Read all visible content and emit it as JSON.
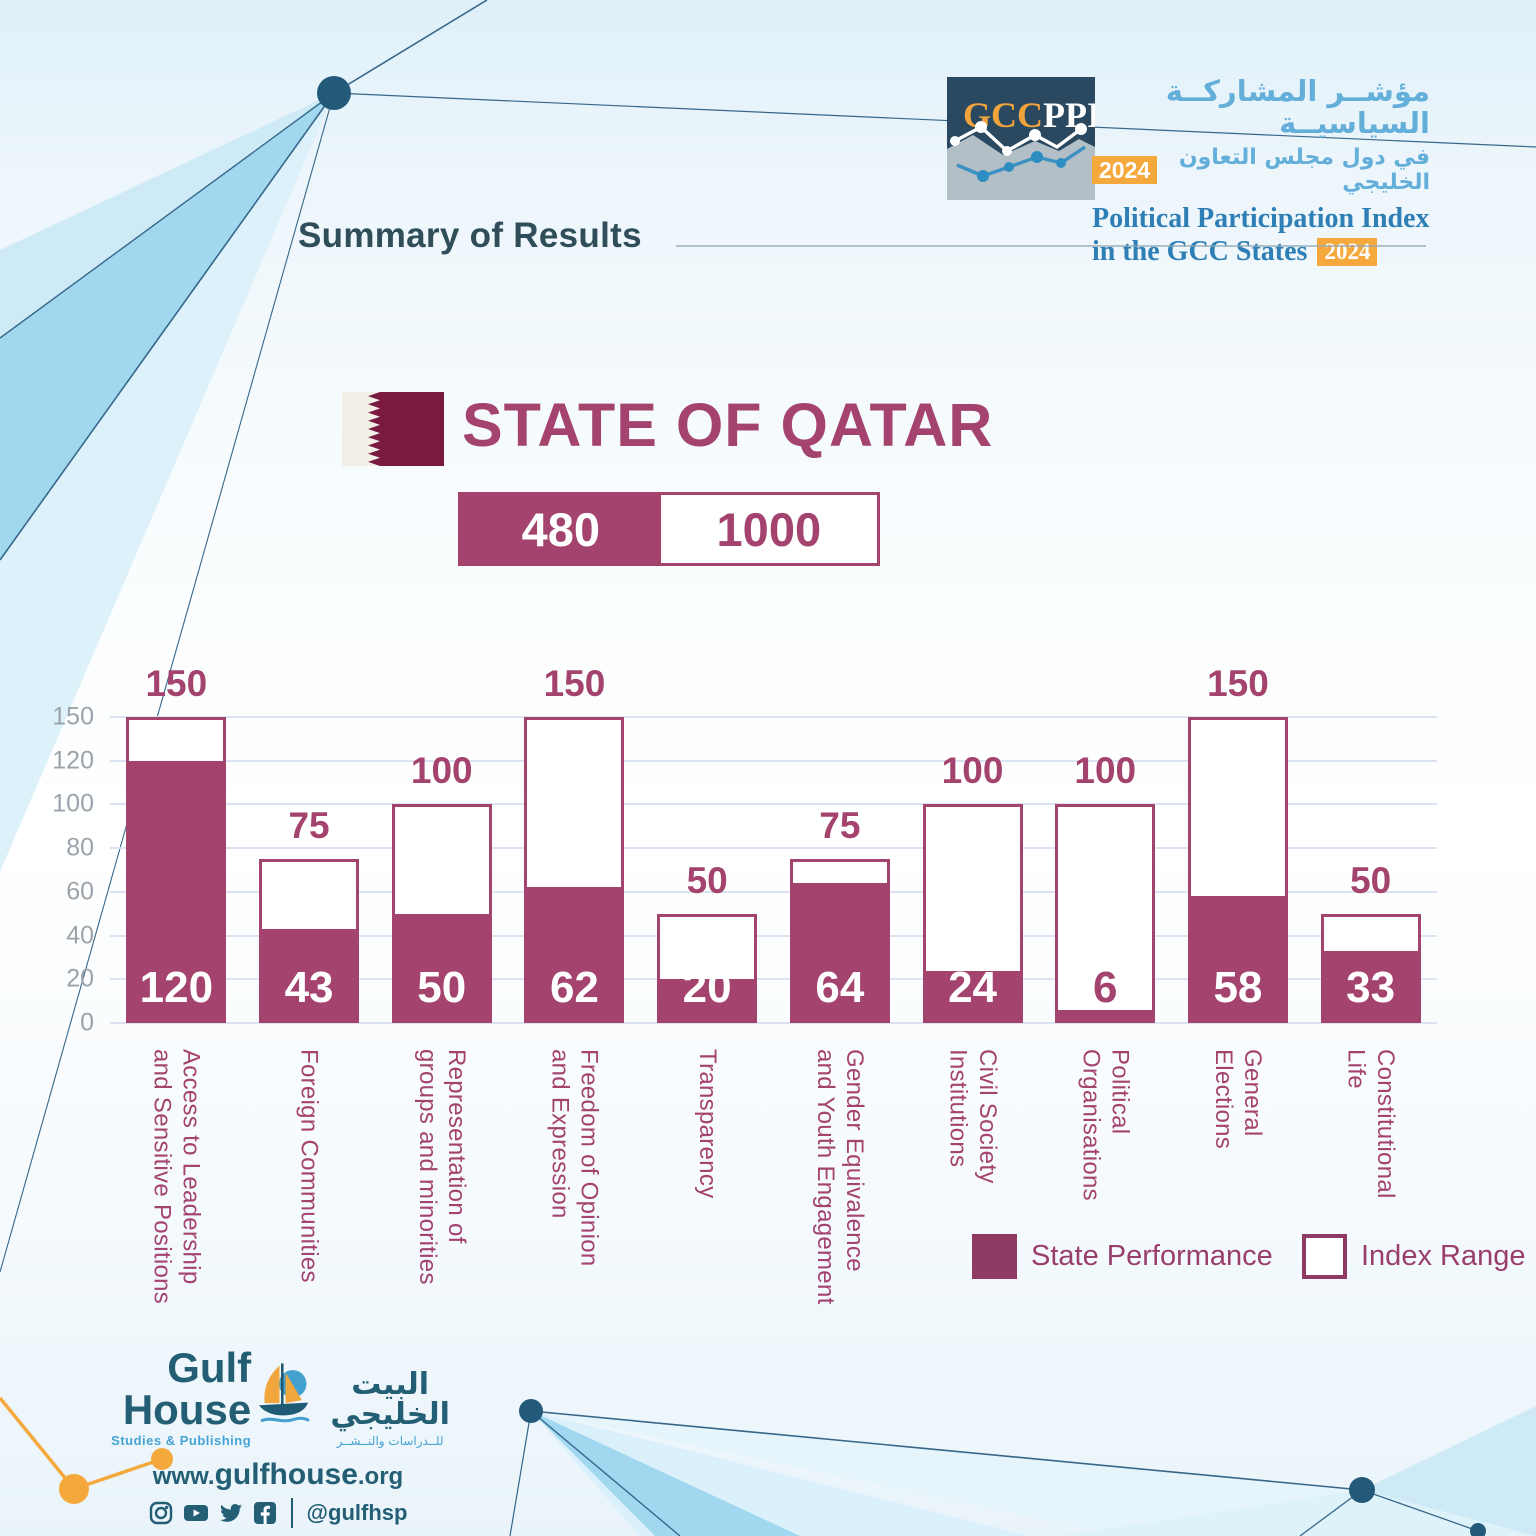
{
  "header": {
    "logo_text_gcc": "GCC",
    "logo_text_ppi": "PPI",
    "title_ar_line1": "مؤشــر المشاركــة السياسيــة",
    "title_ar_line2": "في دول مجلس التعاون الخليجي",
    "year_badge": "2024",
    "title_en_line1": "Political Participation Index",
    "title_en_line2": "in the GCC States"
  },
  "section_title": "Summary of Results",
  "country": {
    "name": "STATE OF QATAR",
    "score": "480",
    "max_score": "1000"
  },
  "chart_data": {
    "type": "bar",
    "title": "",
    "categories": [
      "Access to Leadership\nand Sensitive Positions",
      "Foreign Communities",
      "Representation of\ngroups and minorities",
      "Freedom of Opinion\nand Expression",
      "Transparency",
      "Gender Equivalence\nand Youth Engagement",
      "Civil Society\nInstitutions",
      "Political\nOrganisations",
      "General\nElections",
      "Constitutional\nLife"
    ],
    "series": [
      {
        "name": "State Performance",
        "values": [
          120,
          43,
          50,
          62,
          20,
          64,
          24,
          6,
          58,
          33
        ]
      },
      {
        "name": "Index Range",
        "values": [
          150,
          75,
          100,
          150,
          50,
          75,
          100,
          100,
          150,
          50
        ]
      }
    ],
    "y_ticks": [
      150,
      120,
      100,
      80,
      60,
      40,
      20,
      0
    ],
    "ylim": [
      0,
      150
    ],
    "grid": true,
    "legend_position": "bottom-right",
    "bar_color": "#A3436E",
    "range_fill": "#FFFFFF"
  },
  "legend": {
    "items": [
      {
        "label": "State Performance",
        "style": "filled"
      },
      {
        "label": "Index Range",
        "style": "outline"
      }
    ]
  },
  "footer": {
    "brand_en": "Gulf House",
    "brand_en_sub": "Studies & Publishing",
    "brand_ar": "البيت الخليجي",
    "brand_ar_sub": "للــدراسات والنــشــر",
    "website_prefix": "www.",
    "website_main": "gulfhouse",
    "website_suffix": ".org",
    "social_handle": "@gulfhsp",
    "social_icons": [
      "instagram-icon",
      "youtube-icon",
      "twitter-icon",
      "facebook-icon"
    ]
  },
  "colors": {
    "accent": "#A3436E",
    "accent_dark": "#8F3A63",
    "flag_maroon": "#7A1A41",
    "flag_white": "#F2EFE8",
    "logo_navy": "#2A4960",
    "orange": "#F5A83C",
    "blue_en": "#2E7FB5",
    "blue_ar": "#64AFD9",
    "slate_title": "#2F4E59",
    "grid": "#DBE2F1",
    "tick_grey": "#9CA3AB",
    "footer_teal": "#235E74",
    "decoration_teal": "#235A7A"
  }
}
